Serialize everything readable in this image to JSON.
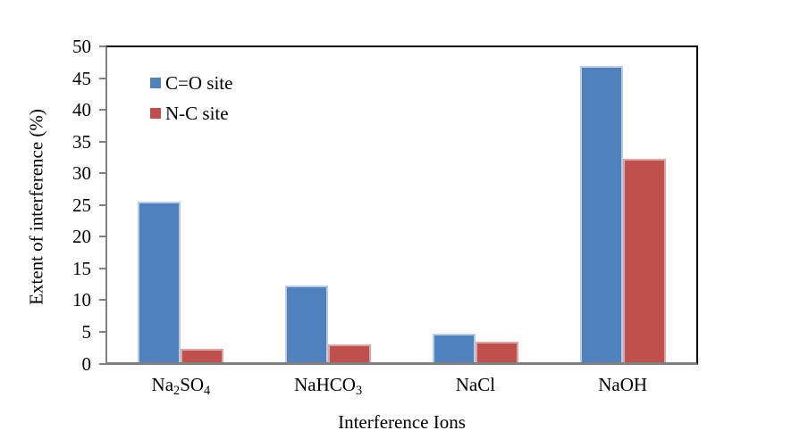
{
  "chart_data": {
    "type": "bar",
    "title": "",
    "xlabel": "Interference Ions",
    "ylabel": "Extent of interference (%)",
    "categories": [
      "Na₂SO₄",
      "NaHCO₃",
      "NaCl",
      "NaOH"
    ],
    "categories_rich": [
      [
        {
          "t": "Na"
        },
        {
          "t": "2",
          "sub": true
        },
        {
          "t": "SO"
        },
        {
          "t": "4",
          "sub": true
        }
      ],
      [
        {
          "t": "NaHCO"
        },
        {
          "t": "3",
          "sub": true
        }
      ],
      [
        {
          "t": "NaCl"
        }
      ],
      [
        {
          "t": "NaOH"
        }
      ]
    ],
    "series": [
      {
        "name": "C=O site",
        "color": "#4F81BD",
        "border_color": "#B9CCE5",
        "values": [
          25.5,
          12.2,
          4.5,
          47.0
        ]
      },
      {
        "name": "N-C site",
        "color": "#C0504D",
        "border_color": "#DCA6A4",
        "values": [
          2.1,
          2.9,
          3.3,
          32.3
        ]
      }
    ],
    "ylim": [
      0,
      50
    ],
    "yticks": [
      0,
      5,
      10,
      15,
      20,
      25,
      30,
      35,
      40,
      45,
      50
    ],
    "grid": false,
    "legend_position": "upper-left-inside",
    "axis_color": "#808080",
    "frame_color": "#000000",
    "text_color": "#000000",
    "background_color": "#FFFFFF"
  }
}
